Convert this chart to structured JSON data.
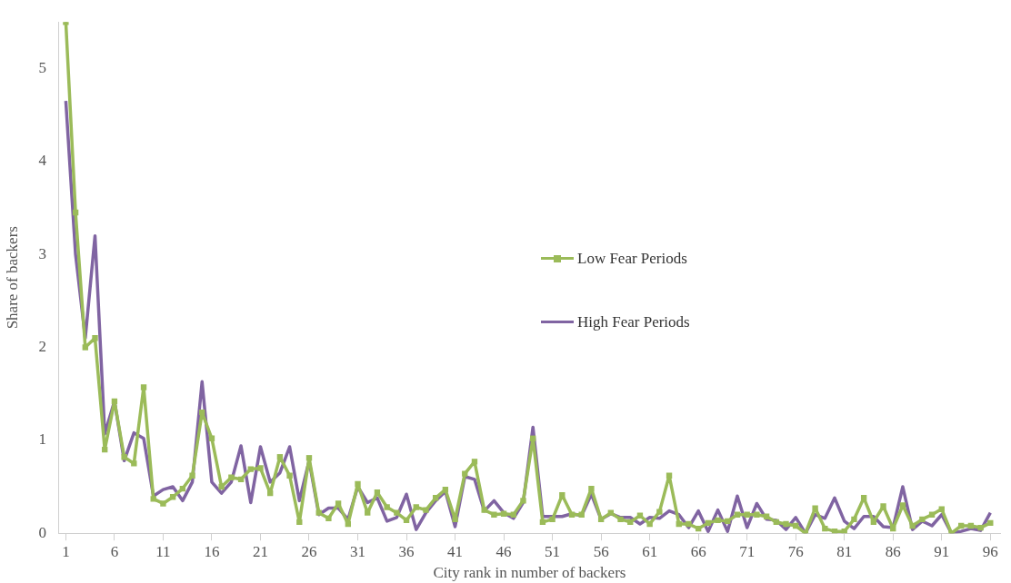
{
  "chart_data": {
    "type": "line",
    "xlabel": "City rank in number of backers",
    "ylabel": "Share of backers",
    "x": [
      1,
      2,
      3,
      4,
      5,
      6,
      7,
      8,
      9,
      10,
      11,
      12,
      13,
      14,
      15,
      16,
      17,
      18,
      19,
      20,
      21,
      22,
      23,
      24,
      25,
      26,
      27,
      28,
      29,
      30,
      31,
      32,
      33,
      34,
      35,
      36,
      37,
      38,
      39,
      40,
      41,
      42,
      43,
      44,
      45,
      46,
      47,
      48,
      49,
      50,
      51,
      52,
      53,
      54,
      55,
      56,
      57,
      58,
      59,
      60,
      61,
      62,
      63,
      64,
      65,
      66,
      67,
      68,
      69,
      70,
      71,
      72,
      73,
      74,
      75,
      76,
      77,
      78,
      79,
      80,
      81,
      82,
      83,
      84,
      85,
      86,
      87,
      88,
      89,
      90,
      91,
      92,
      93,
      94,
      95,
      96
    ],
    "xlim": [
      0.3,
      97
    ],
    "xticks": [
      1,
      6,
      11,
      16,
      21,
      26,
      31,
      36,
      41,
      46,
      51,
      56,
      61,
      66,
      71,
      76,
      81,
      86,
      91,
      96
    ],
    "ylim": [
      0,
      5.5
    ],
    "yticks": [
      0,
      1,
      2,
      3,
      4,
      5
    ],
    "grid": false,
    "legend": "right",
    "series": [
      {
        "name": "Low Fear Periods",
        "color": "#9bbb59",
        "marker": "square",
        "values": [
          5.5,
          3.45,
          2.0,
          2.1,
          0.9,
          1.42,
          0.82,
          0.75,
          1.57,
          0.37,
          0.32,
          0.39,
          0.48,
          0.62,
          1.3,
          1.02,
          0.5,
          0.6,
          0.58,
          0.69,
          0.7,
          0.43,
          0.82,
          0.62,
          0.12,
          0.81,
          0.22,
          0.16,
          0.32,
          0.1,
          0.53,
          0.22,
          0.44,
          0.28,
          0.22,
          0.14,
          0.28,
          0.25,
          0.38,
          0.47,
          0.15,
          0.64,
          0.77,
          0.25,
          0.2,
          0.21,
          0.2,
          0.35,
          1.02,
          0.12,
          0.15,
          0.41,
          0.2,
          0.2,
          0.48,
          0.15,
          0.22,
          0.15,
          0.12,
          0.19,
          0.1,
          0.23,
          0.62,
          0.1,
          0.1,
          0.05,
          0.11,
          0.14,
          0.13,
          0.2,
          0.2,
          0.2,
          0.18,
          0.12,
          0.1,
          0.08,
          0.0,
          0.27,
          0.05,
          0.02,
          0.02,
          0.15,
          0.38,
          0.12,
          0.29,
          0.05,
          0.3,
          0.08,
          0.15,
          0.2,
          0.26,
          0.0,
          0.08,
          0.08,
          0.06,
          0.11
        ]
      },
      {
        "name": "High Fear Periods",
        "color": "#8064a2",
        "marker": "none",
        "values": [
          4.65,
          3.0,
          2.1,
          3.2,
          1.07,
          1.42,
          0.78,
          1.08,
          1.02,
          0.4,
          0.47,
          0.5,
          0.35,
          0.55,
          1.63,
          0.55,
          0.43,
          0.55,
          0.94,
          0.33,
          0.93,
          0.55,
          0.65,
          0.93,
          0.35,
          0.78,
          0.2,
          0.27,
          0.27,
          0.15,
          0.5,
          0.33,
          0.38,
          0.13,
          0.17,
          0.42,
          0.04,
          0.22,
          0.35,
          0.45,
          0.07,
          0.61,
          0.58,
          0.24,
          0.35,
          0.22,
          0.16,
          0.33,
          1.14,
          0.18,
          0.18,
          0.18,
          0.21,
          0.19,
          0.42,
          0.15,
          0.21,
          0.17,
          0.17,
          0.1,
          0.17,
          0.16,
          0.24,
          0.2,
          0.06,
          0.24,
          0.02,
          0.25,
          0.02,
          0.4,
          0.06,
          0.32,
          0.15,
          0.14,
          0.04,
          0.17,
          0.0,
          0.2,
          0.16,
          0.38,
          0.13,
          0.05,
          0.18,
          0.18,
          0.07,
          0.06,
          0.5,
          0.04,
          0.13,
          0.08,
          0.2,
          0.0,
          0.02,
          0.05,
          0.03,
          0.22
        ]
      }
    ]
  }
}
